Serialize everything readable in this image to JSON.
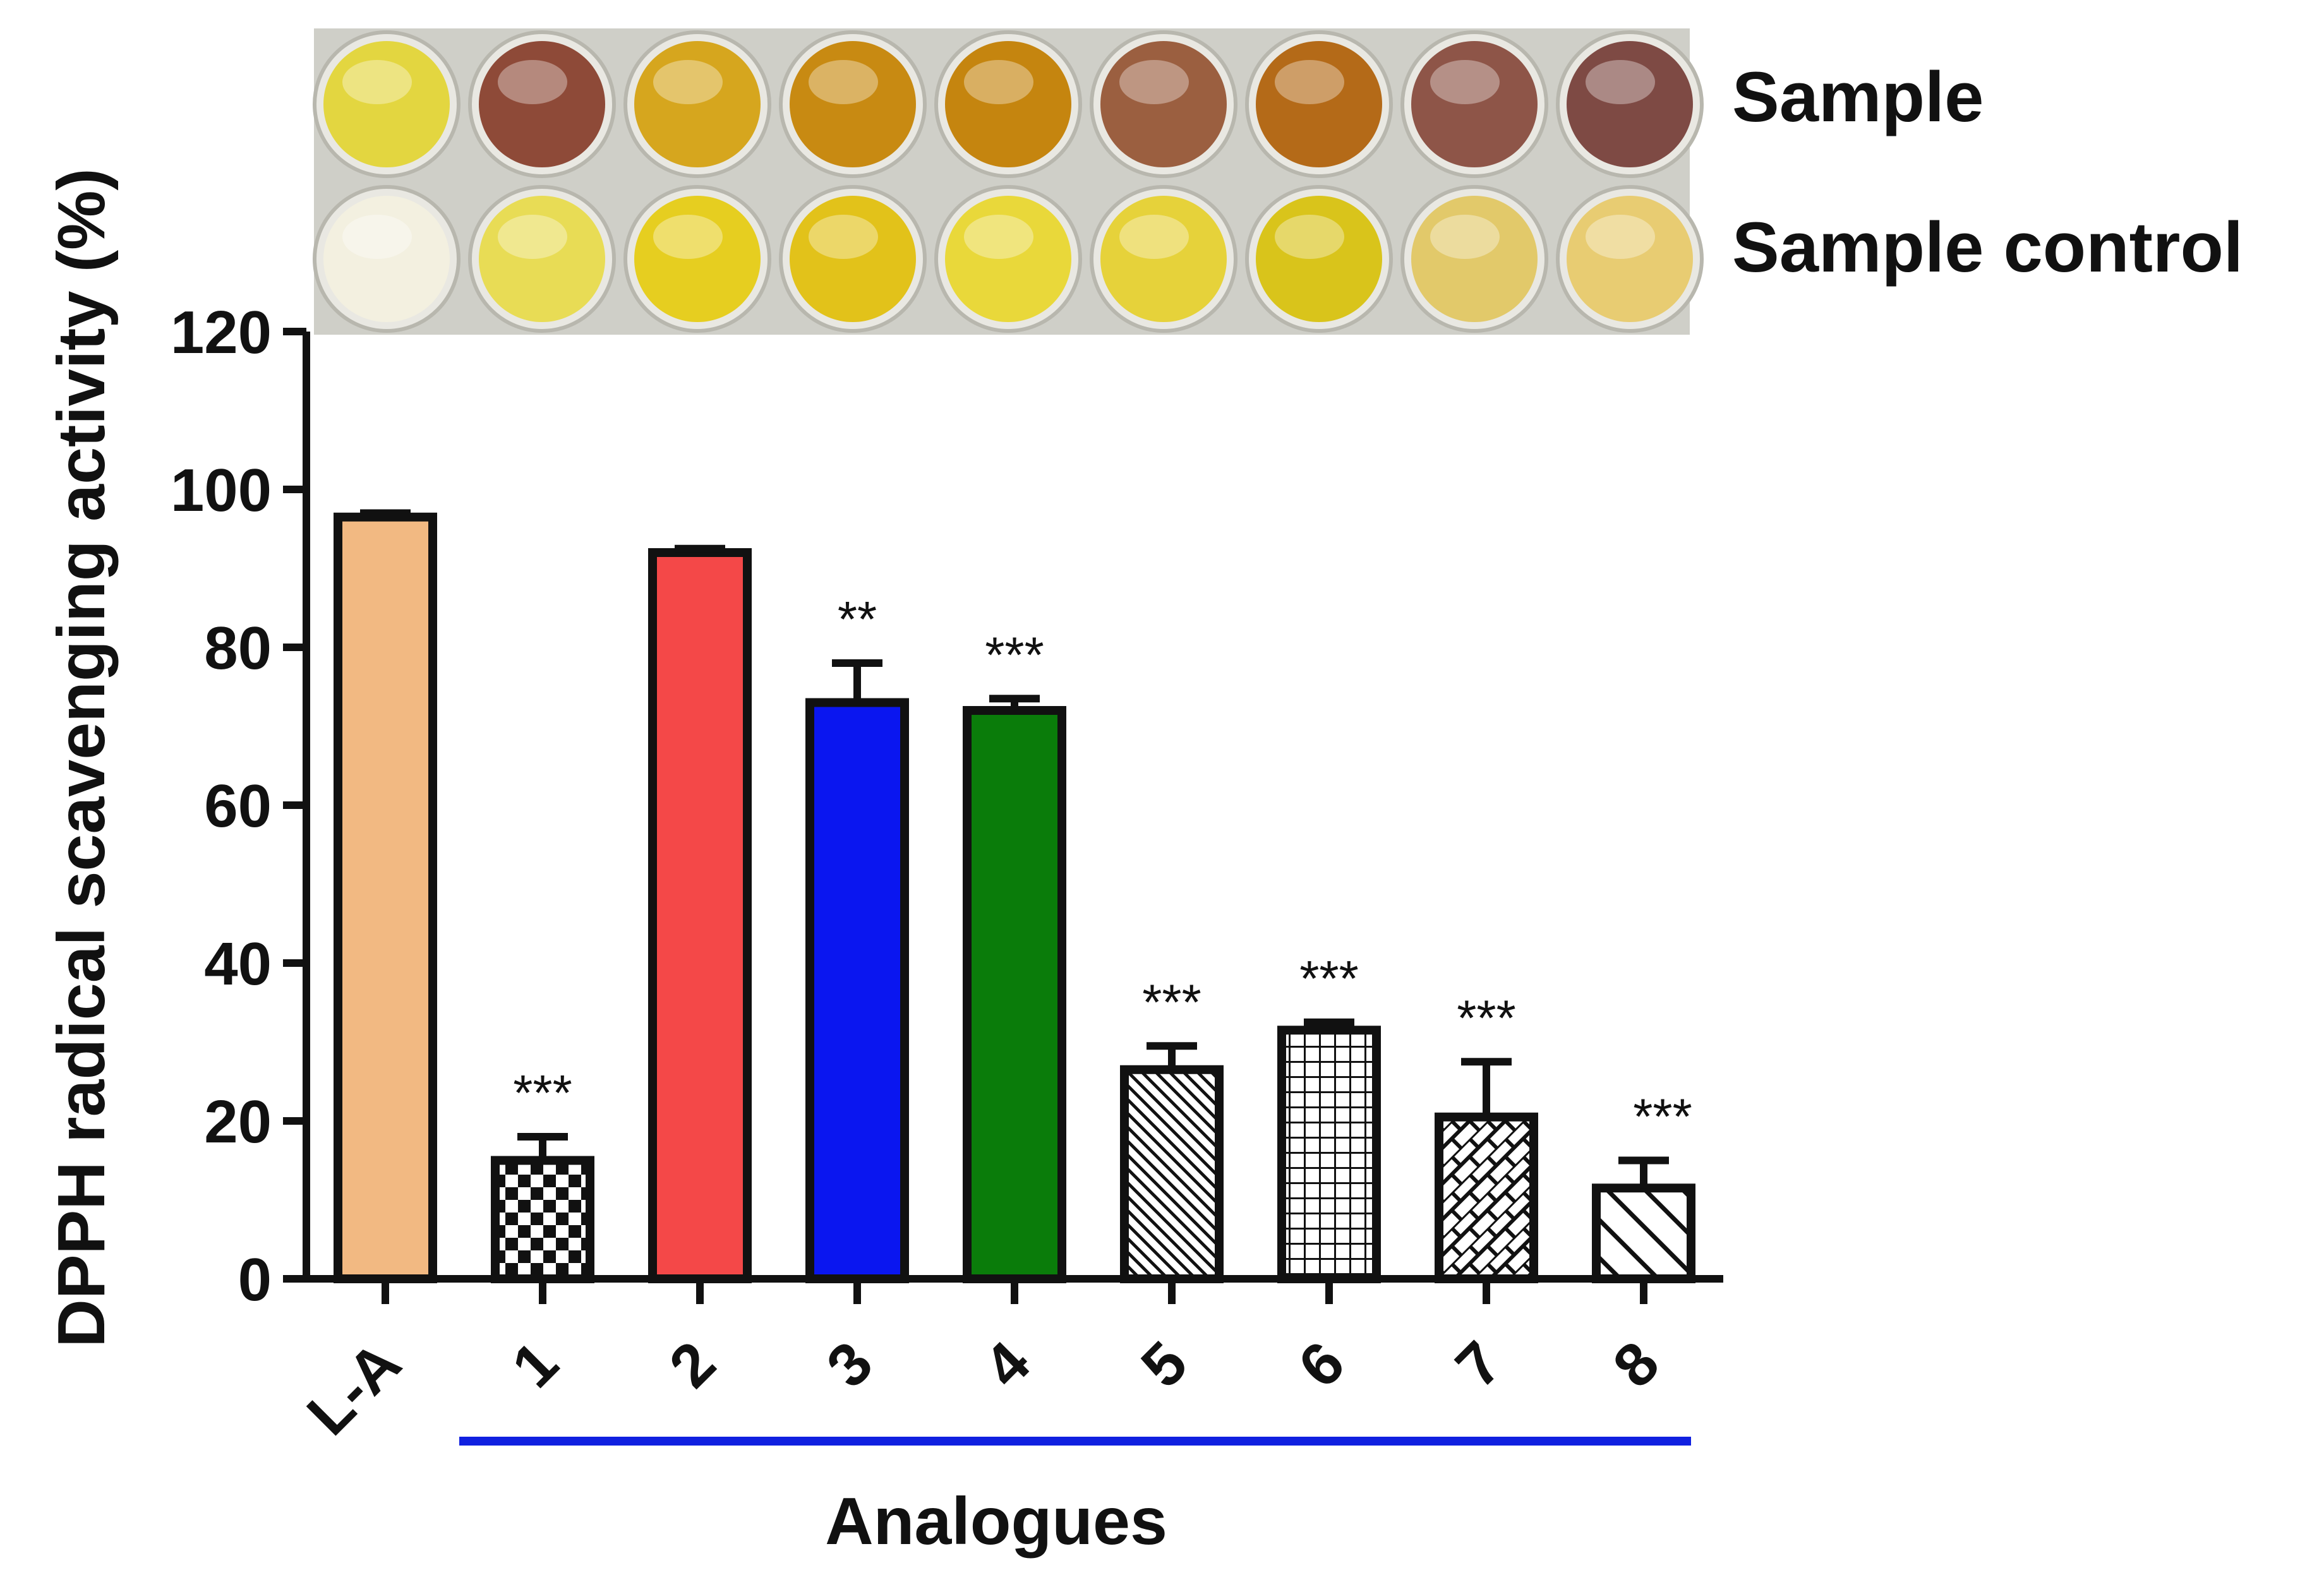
{
  "chart_data": {
    "type": "bar",
    "title": "",
    "xlabel": "Analogues",
    "ylabel": "DPPH radical scavenging activity (%)",
    "ylim": [
      0,
      120
    ],
    "yticks": [
      "0",
      "20",
      "40",
      "60",
      "80",
      "100",
      "120"
    ],
    "categories": [
      "L-A",
      "1",
      "2",
      "3",
      "4",
      "5",
      "6",
      "7",
      "8"
    ],
    "values": [
      96.5,
      15,
      92,
      73,
      72,
      26.5,
      31.5,
      20.5,
      11.5
    ],
    "errors": [
      0.5,
      3,
      0.5,
      5,
      1.5,
      3,
      1,
      7,
      3.5
    ],
    "significance": [
      "",
      "***",
      "",
      "**",
      "***",
      "***",
      "***",
      "***",
      "***"
    ],
    "fills": [
      "solid",
      "checker",
      "solid",
      "solid",
      "solid",
      "diag-back",
      "grid",
      "brick-diag",
      "diag-back-wide"
    ],
    "colors": [
      "#F2B982",
      "#ffffff",
      "#F44848",
      "#0A16F0",
      "#0A7C0A",
      "#ffffff",
      "#ffffff",
      "#ffffff",
      "#ffffff"
    ],
    "group_line_color": "#1020E0",
    "grid": false,
    "legend": "none"
  },
  "plate": {
    "rows": [
      "Sample",
      "Sample control"
    ],
    "sample_colors": [
      "#E3D640",
      "#8E4A38",
      "#D6A61E",
      "#C88A12",
      "#C5850F",
      "#9B5F40",
      "#B46A18",
      "#8E5548",
      "#7E4A44"
    ],
    "control_colors": [
      "#F3F0E0",
      "#E8DC55",
      "#E6CE20",
      "#E2C21A",
      "#E9D83A",
      "#E6D23A",
      "#D9C41B",
      "#E2C96A",
      "#E8CC72"
    ]
  }
}
